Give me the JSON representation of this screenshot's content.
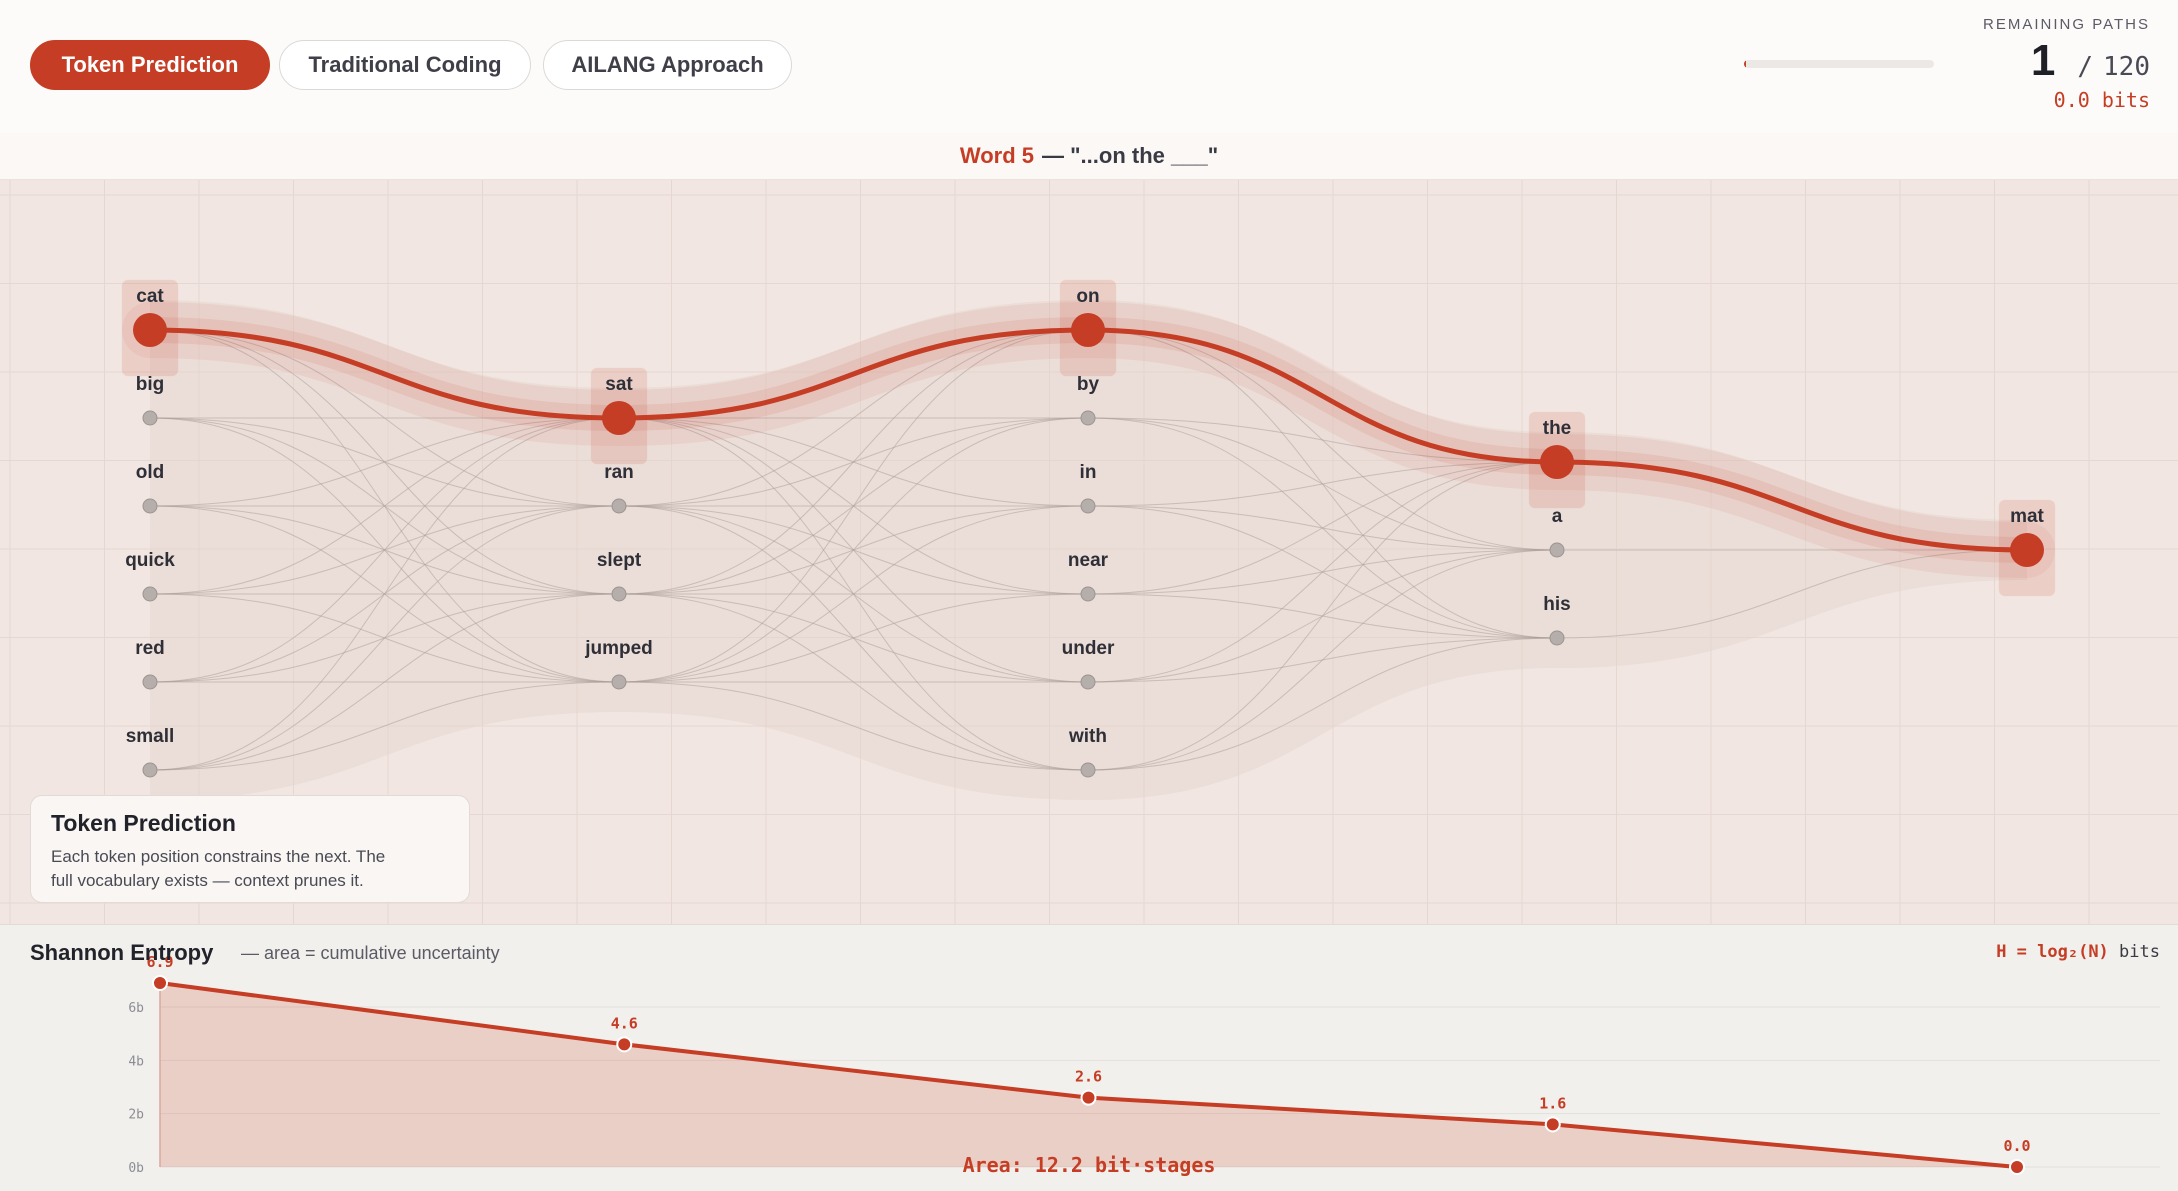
{
  "tabs": [
    {
      "label": "Token Prediction",
      "active": true
    },
    {
      "label": "Traditional Coding",
      "active": false
    },
    {
      "label": "AILANG Approach",
      "active": false
    }
  ],
  "remaining_paths": {
    "label": "REMAINING PATHS",
    "current": "1",
    "separator": "/",
    "total": "120",
    "bits": "0.0 bits",
    "progress_fraction": 0.008
  },
  "context": {
    "word": "Word 5",
    "rest": "— \"...on the ___\""
  },
  "graph": {
    "columns": [
      {
        "selected": "cat",
        "words": [
          "cat",
          "big",
          "old",
          "quick",
          "red",
          "small"
        ]
      },
      {
        "selected": "sat",
        "words": [
          "sat",
          "ran",
          "slept",
          "jumped"
        ]
      },
      {
        "selected": "on",
        "words": [
          "on",
          "by",
          "in",
          "near",
          "under",
          "with"
        ]
      },
      {
        "selected": "the",
        "words": [
          "the",
          "a",
          "his"
        ]
      },
      {
        "selected": "mat",
        "words": [
          "mat"
        ]
      }
    ],
    "accent_color": "#c53d24"
  },
  "info_card": {
    "title": "Token Prediction",
    "body_line1": "Each token position constrains the next. The",
    "body_line2": "full vocabulary exists — context prunes it."
  },
  "entropy": {
    "title": "Shannon Entropy",
    "subtitle": "— area = cumulative uncertainty",
    "formula_main": "H = log₂(N)",
    "formula_unit": "bits",
    "area_label": "Area: 12.2 bit·stages"
  },
  "chart_data": {
    "type": "area",
    "x": [
      1,
      2,
      3,
      4,
      5
    ],
    "values": [
      6.9,
      4.6,
      2.6,
      1.6,
      0.0
    ],
    "value_labels": [
      "6.9",
      "4.6",
      "2.6",
      "1.6",
      "0.0"
    ],
    "y_ticks": [
      "0b",
      "2b",
      "4b",
      "6b"
    ],
    "ylim": [
      0,
      6.9
    ],
    "grid": true
  }
}
